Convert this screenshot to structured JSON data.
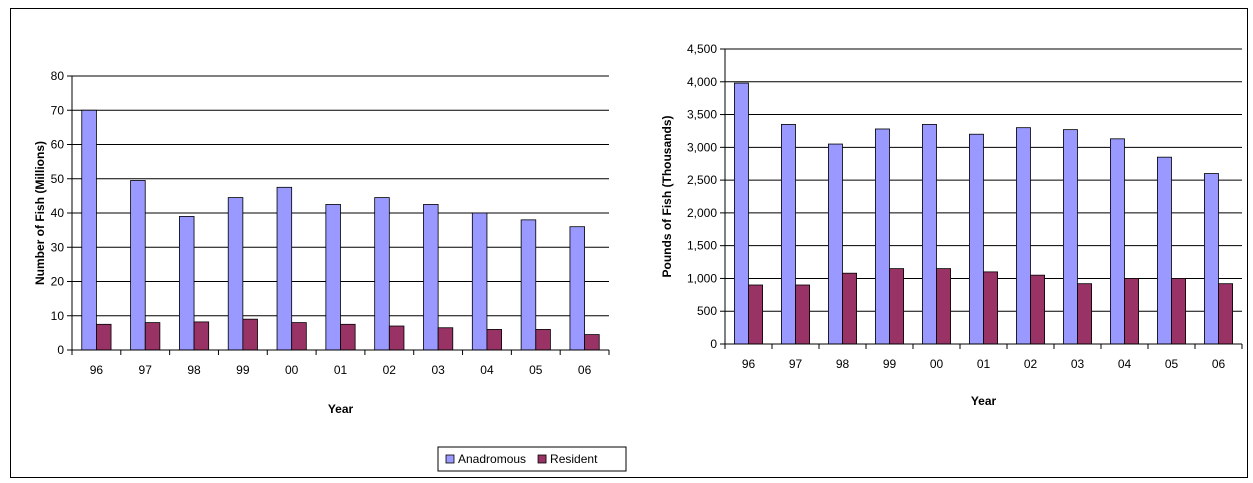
{
  "chart_data": [
    {
      "type": "bar",
      "title": "",
      "xlabel": "Year",
      "ylabel": "Number of Fish (Millions)",
      "categories": [
        "96",
        "97",
        "98",
        "99",
        "00",
        "01",
        "02",
        "03",
        "04",
        "05",
        "06"
      ],
      "ylim": [
        0,
        80
      ],
      "yticks": [
        "0",
        "10",
        "20",
        "30",
        "40",
        "50",
        "60",
        "70",
        "80"
      ],
      "grid": true,
      "series": [
        {
          "name": "Anadromous",
          "color": "#9999ff",
          "values": [
            70,
            49.5,
            39,
            44.5,
            47.5,
            42.5,
            44.5,
            42.5,
            40,
            38,
            36
          ]
        },
        {
          "name": "Resident",
          "color": "#993366",
          "values": [
            7.5,
            8,
            8.2,
            9,
            8,
            7.5,
            7,
            6.5,
            6,
            6,
            4.5
          ]
        }
      ],
      "legend": "bottom"
    },
    {
      "type": "bar",
      "title": "",
      "xlabel": "Year",
      "ylabel": "Pounds of Fish (Thousands)",
      "categories": [
        "96",
        "97",
        "98",
        "99",
        "00",
        "01",
        "02",
        "03",
        "04",
        "05",
        "06"
      ],
      "ylim": [
        0,
        4500
      ],
      "yticks": [
        "0",
        "500",
        "1,000",
        "1,500",
        "2,000",
        "2,500",
        "3,000",
        "3,500",
        "4,000",
        "4,500"
      ],
      "grid": true,
      "series": [
        {
          "name": "Anadromous",
          "color": "#9999ff",
          "values": [
            3980,
            3350,
            3050,
            3280,
            3350,
            3200,
            3300,
            3270,
            3130,
            2850,
            2600
          ]
        },
        {
          "name": "Resident",
          "color": "#993366",
          "values": [
            900,
            900,
            1080,
            1150,
            1150,
            1100,
            1050,
            920,
            1000,
            1000,
            920
          ]
        }
      ]
    }
  ],
  "legend": {
    "items": [
      {
        "label": "Anadromous",
        "color": "#9999ff"
      },
      {
        "label": "Resident",
        "color": "#993366"
      }
    ]
  }
}
